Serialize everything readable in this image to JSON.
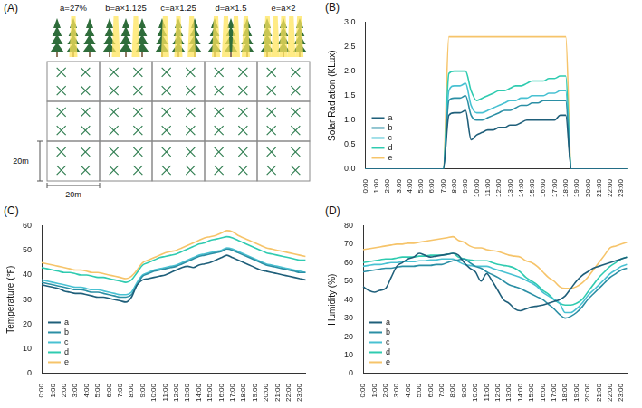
{
  "diagram": {
    "panel": "(A)",
    "columns": [
      "a=27%",
      "b=a×1.125",
      "c=a×1.25",
      "d=a×1.5",
      "e=a×2"
    ],
    "rows": 3,
    "size_labels": [
      "20m",
      "20m"
    ]
  },
  "chart_data": [
    {
      "type": "line",
      "panel": "(B)",
      "y_label": "Solar Radiation (KLux)",
      "categories": [
        "0:00",
        null,
        "1:00",
        null,
        "2:00",
        null,
        "3:00",
        null,
        "4:00",
        null,
        "5:00",
        null,
        "6:00",
        null,
        "7:00",
        null,
        "8:00",
        null,
        "9:00",
        null,
        "10:00",
        null,
        "11:00",
        null,
        "12:00",
        null,
        "13:00",
        null,
        "14:00",
        null,
        "15:00",
        null,
        "16:00",
        null,
        "17:00",
        null,
        "18:00",
        null,
        "19:00",
        null,
        "20:00",
        null,
        "21:00",
        null,
        "22:00",
        null,
        "23:00",
        null
      ],
      "series": [
        {
          "name": "a",
          "color": "#1f5f7a",
          "values": [
            0,
            0,
            0,
            0,
            0,
            0,
            0,
            0,
            0,
            0,
            0,
            0,
            0,
            0,
            0,
            1.1,
            1.15,
            1.15,
            1.2,
            0.6,
            0.7,
            0.75,
            0.8,
            0.8,
            0.85,
            0.85,
            0.9,
            0.9,
            0.95,
            1.0,
            1.0,
            1.0,
            1.0,
            1.0,
            1.0,
            1.1,
            1.1,
            0,
            0,
            0,
            0,
            0,
            0,
            0,
            0,
            0,
            0,
            0
          ]
        },
        {
          "name": "b",
          "color": "#2b8fa5",
          "values": [
            0,
            0,
            0,
            0,
            0,
            0,
            0,
            0,
            0,
            0,
            0,
            0,
            0,
            0,
            0,
            1.4,
            1.45,
            1.45,
            1.5,
            1.1,
            1.0,
            1.0,
            1.05,
            1.1,
            1.15,
            1.2,
            1.2,
            1.25,
            1.3,
            1.3,
            1.35,
            1.35,
            1.4,
            1.4,
            1.4,
            1.4,
            1.4,
            0,
            0,
            0,
            0,
            0,
            0,
            0,
            0,
            0,
            0,
            0
          ]
        },
        {
          "name": "c",
          "color": "#48c1d2",
          "values": [
            0,
            0,
            0,
            0,
            0,
            0,
            0,
            0,
            0,
            0,
            0,
            0,
            0,
            0,
            0,
            1.6,
            1.7,
            1.7,
            1.75,
            1.3,
            1.15,
            1.15,
            1.2,
            1.25,
            1.3,
            1.35,
            1.4,
            1.4,
            1.45,
            1.45,
            1.5,
            1.5,
            1.5,
            1.55,
            1.55,
            1.6,
            1.6,
            0,
            0,
            0,
            0,
            0,
            0,
            0,
            0,
            0,
            0,
            0
          ]
        },
        {
          "name": "d",
          "color": "#2fcbb0",
          "values": [
            0,
            0,
            0,
            0,
            0,
            0,
            0,
            0,
            0,
            0,
            0,
            0,
            0,
            0,
            0,
            1.95,
            2.0,
            2.0,
            2.0,
            1.6,
            1.4,
            1.45,
            1.5,
            1.55,
            1.6,
            1.6,
            1.65,
            1.7,
            1.7,
            1.75,
            1.8,
            1.8,
            1.8,
            1.85,
            1.85,
            1.9,
            1.9,
            0,
            0,
            0,
            0,
            0,
            0,
            0,
            0,
            0,
            0,
            0
          ]
        },
        {
          "name": "e",
          "color": "#f6c46a",
          "values": [
            0,
            0,
            0,
            0,
            0,
            0,
            0,
            0,
            0,
            0,
            0,
            0,
            0,
            0,
            0,
            2.7,
            2.7,
            2.7,
            2.7,
            2.7,
            2.7,
            2.7,
            2.7,
            2.7,
            2.7,
            2.7,
            2.7,
            2.7,
            2.7,
            2.7,
            2.7,
            2.7,
            2.7,
            2.7,
            2.7,
            2.7,
            2.7,
            0,
            0,
            0,
            0,
            0,
            0,
            0,
            0,
            0,
            0,
            0
          ]
        }
      ],
      "ylim": [
        0,
        3
      ],
      "yticks": [
        {
          "value": 0,
          "label": "0.0"
        },
        0.5,
        {
          "value": 1,
          "label": "1.0"
        },
        1.5,
        {
          "value": 2,
          "label": "2.0"
        },
        2.5,
        {
          "value": 3,
          "label": "3.0"
        }
      ],
      "grid": false,
      "legend": "lower left"
    },
    {
      "type": "line",
      "panel": "(C)",
      "y_label": "Temperature (℉)",
      "categories": [
        "0:00",
        null,
        "1:00",
        null,
        "2:00",
        null,
        "3:00",
        null,
        "4:00",
        null,
        "5:00",
        null,
        "6:00",
        null,
        "7:00",
        null,
        "8:00",
        null,
        "9:00",
        null,
        "10:00",
        null,
        "11:00",
        null,
        "12:00",
        null,
        "13:00",
        null,
        "14:00",
        null,
        "15:00",
        null,
        "16:00",
        null,
        "17:00",
        null,
        "18:00",
        null,
        "19:00",
        null,
        "20:00",
        null,
        "21:00",
        null,
        "22:00",
        null,
        "23:00",
        null
      ],
      "series": [
        {
          "name": "a",
          "color": "#1f5f7a",
          "values": [
            36,
            35.5,
            35,
            34.5,
            33.5,
            33,
            32.5,
            32.5,
            32,
            31.5,
            31,
            31,
            30.5,
            30,
            29.5,
            29,
            31,
            36,
            38,
            38.5,
            39,
            39.5,
            40,
            41,
            42,
            43,
            43.5,
            43,
            44,
            44.5,
            45,
            46,
            47,
            48,
            47,
            46,
            45,
            44,
            43,
            42,
            41.5,
            41,
            40.5,
            40,
            39.5,
            39,
            38.5,
            38
          ]
        },
        {
          "name": "b",
          "color": "#2b8fa5",
          "values": [
            37,
            36.5,
            36,
            35.5,
            35,
            34.5,
            34,
            34,
            33.5,
            33,
            33,
            32.5,
            32,
            31.5,
            31,
            31,
            32,
            36,
            39.5,
            40.5,
            41.5,
            42,
            42.5,
            43,
            43.5,
            44.5,
            45.5,
            46.5,
            47.5,
            48,
            48.5,
            49,
            49.5,
            50.5,
            50,
            49,
            48,
            47,
            46,
            45,
            44,
            43.5,
            43,
            42.5,
            42,
            41.5,
            41,
            41
          ]
        },
        {
          "name": "c",
          "color": "#48c1d2",
          "values": [
            38,
            37.5,
            37,
            36.5,
            36,
            35.5,
            35,
            35,
            34.5,
            34,
            34,
            33.5,
            33,
            32.5,
            32,
            32,
            33,
            37,
            40,
            41,
            42,
            42.5,
            43,
            43.5,
            44,
            45,
            46,
            47,
            48,
            48.5,
            49,
            49.5,
            50,
            51,
            50.5,
            49.5,
            48.5,
            47.5,
            46.5,
            45.5,
            44.5,
            44,
            43.5,
            43,
            42.5,
            42,
            41.5,
            41
          ]
        },
        {
          "name": "d",
          "color": "#2fcbb0",
          "values": [
            43,
            42.5,
            42,
            41.5,
            41,
            41,
            40.5,
            40,
            40,
            39.5,
            39,
            39,
            38.5,
            38,
            37.5,
            37,
            38,
            41,
            44,
            45,
            46,
            47,
            47.5,
            48,
            48.5,
            49.5,
            50.5,
            51.5,
            52.5,
            53,
            54,
            54.5,
            55,
            55.5,
            55,
            54,
            53,
            52,
            51,
            50,
            49,
            48.5,
            48,
            47.5,
            47,
            46.5,
            46,
            46
          ]
        },
        {
          "name": "e",
          "color": "#f6c46a",
          "values": [
            45,
            44.5,
            44,
            43.5,
            43,
            42.5,
            42,
            42,
            41.5,
            41,
            41,
            40.5,
            40,
            39.5,
            39,
            38.5,
            39.5,
            42,
            45,
            46,
            47,
            48,
            49,
            49.5,
            50,
            51,
            52,
            53,
            54,
            55,
            55.5,
            56,
            57,
            58,
            57.5,
            56,
            55,
            54,
            53,
            52,
            51,
            50.5,
            50,
            49.5,
            49,
            48.5,
            48,
            47.5
          ]
        }
      ],
      "ylim": [
        0,
        60
      ],
      "yticks": [
        0,
        10,
        20,
        30,
        40,
        50,
        60
      ],
      "grid": false,
      "legend": "lower left"
    },
    {
      "type": "line",
      "panel": "(D)",
      "y_label": "Humidity (%)",
      "categories": [
        "0:00",
        null,
        "1:00",
        null,
        "2:00",
        null,
        "3:00",
        null,
        "4:00",
        null,
        "5:00",
        null,
        "6:00",
        null,
        "7:00",
        null,
        "8:00",
        null,
        "9:00",
        null,
        "10:00",
        null,
        "11:00",
        null,
        "12:00",
        null,
        "13:00",
        null,
        "14:00",
        null,
        "15:00",
        null,
        "16:00",
        null,
        "17:00",
        null,
        "18:00",
        null,
        "19:00",
        null,
        "20:00",
        null,
        "21:00",
        null,
        "22:00",
        null,
        "23:00",
        null
      ],
      "series": [
        {
          "name": "a",
          "color": "#1f5f7a",
          "values": [
            47,
            45,
            44,
            45,
            46,
            52,
            58,
            60,
            62,
            63,
            65,
            64,
            63,
            63.5,
            64,
            64.5,
            65,
            64,
            60,
            57,
            55,
            50,
            54,
            50,
            45,
            40,
            38,
            35,
            34,
            35,
            36,
            36.5,
            37,
            38,
            39,
            40,
            42,
            46,
            50,
            53,
            55,
            57,
            58,
            59,
            60,
            61,
            62,
            63
          ]
        },
        {
          "name": "b",
          "color": "#2b8fa5",
          "values": [
            55,
            55.5,
            56,
            56.5,
            57,
            57,
            57.5,
            58,
            58,
            58,
            58.5,
            58.5,
            58.5,
            59,
            59,
            60,
            61,
            61.5,
            62,
            60,
            58,
            57,
            55,
            53.5,
            52,
            50,
            48,
            47,
            46,
            44.5,
            43,
            41.5,
            40,
            37.5,
            35,
            32,
            30,
            31,
            33,
            36,
            40,
            43,
            46,
            49,
            52,
            54,
            56,
            57
          ]
        },
        {
          "name": "c",
          "color": "#48c1d2",
          "values": [
            58,
            58.5,
            59,
            59,
            59.5,
            60,
            60,
            60.5,
            60.5,
            60.5,
            61,
            61,
            61.5,
            61.5,
            62,
            62,
            62,
            60.5,
            59,
            58.5,
            58,
            58,
            58,
            57,
            56,
            55,
            54,
            53,
            52,
            50.5,
            49,
            47,
            44,
            42,
            40,
            38,
            33,
            33,
            35,
            38,
            42,
            45,
            48,
            51,
            54,
            56,
            58,
            59
          ]
        },
        {
          "name": "d",
          "color": "#2fcbb0",
          "values": [
            60,
            60.5,
            61,
            61.5,
            62,
            62,
            62.5,
            63,
            63,
            63,
            63.5,
            63.5,
            64,
            64,
            64,
            64.5,
            65,
            63,
            62,
            61.5,
            61,
            61,
            61,
            60,
            59,
            58.5,
            58,
            57,
            55,
            52,
            50,
            48,
            45,
            43,
            40,
            38,
            37,
            37,
            38,
            40,
            44,
            48,
            52,
            55,
            58,
            60,
            62,
            63
          ]
        },
        {
          "name": "e",
          "color": "#f6c46a",
          "values": [
            67,
            67.5,
            68,
            68.5,
            69,
            69.5,
            70,
            70,
            70.5,
            70.5,
            71,
            71.5,
            72,
            72.5,
            73,
            73.5,
            74,
            72,
            71,
            69,
            68,
            68,
            67,
            66.5,
            66,
            65,
            64,
            63.5,
            63,
            61,
            60,
            58,
            55,
            52,
            50,
            47,
            46,
            46,
            47,
            49,
            52,
            56,
            60,
            64,
            68,
            69,
            70,
            71
          ]
        }
      ],
      "ylim": [
        0,
        80
      ],
      "yticks": [
        0,
        10,
        20,
        30,
        40,
        50,
        60,
        70,
        80
      ],
      "grid": false,
      "legend": "lower left"
    }
  ]
}
